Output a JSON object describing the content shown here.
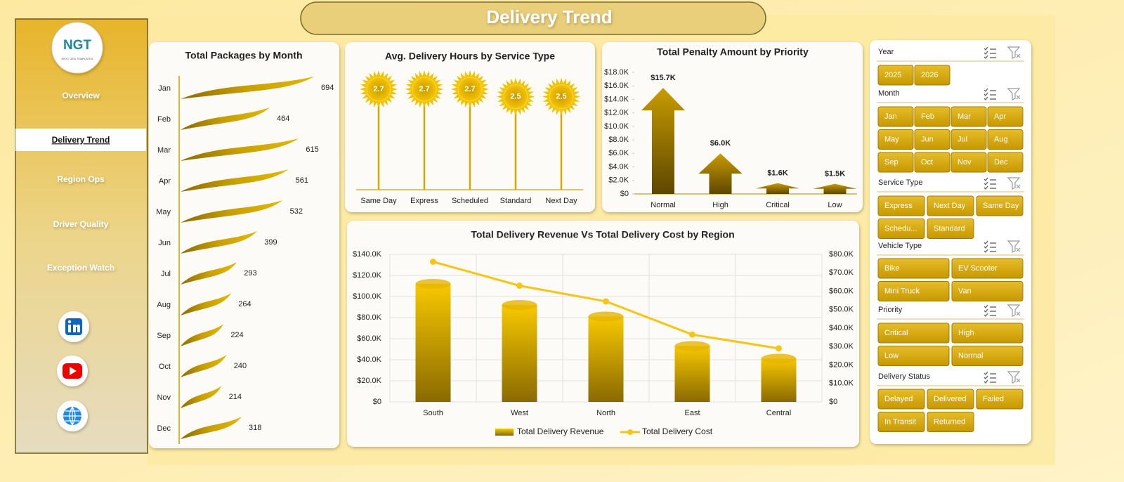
{
  "header": {
    "title": "Delivery Trend"
  },
  "logo": {
    "name": "NGT",
    "tagline": "NEXT GEN TEMPLATES"
  },
  "nav": {
    "items": [
      "Overview",
      "Delivery Trend",
      "Region Ops",
      "Driver Quality",
      "Exception Watch"
    ],
    "active": 1
  },
  "chart_data": [
    {
      "type": "bar",
      "title": "Total Packages by Month",
      "categories": [
        "Jan",
        "Feb",
        "Mar",
        "Apr",
        "May",
        "Jun",
        "Jul",
        "Aug",
        "Sep",
        "Oct",
        "Nov",
        "Dec"
      ],
      "values": [
        694,
        464,
        615,
        561,
        532,
        399,
        293,
        264,
        224,
        240,
        214,
        318
      ],
      "color": "#c9a000"
    },
    {
      "type": "lollipop",
      "title": "Avg. Delivery Hours by Service Type",
      "categories": [
        "Same Day",
        "Express",
        "Scheduled",
        "Standard",
        "Next Day"
      ],
      "values": [
        2.7,
        2.7,
        2.7,
        2.5,
        2.5
      ],
      "color": "#f2c200"
    },
    {
      "type": "column",
      "title": "Total Penalty Amount by Priority",
      "categories": [
        "Normal",
        "High",
        "Critical",
        "Low"
      ],
      "values": [
        15700,
        6000,
        1600,
        1500
      ],
      "value_labels": [
        "$15.7K",
        "$6.0K",
        "$1.6K",
        "$1.5K"
      ],
      "color": "#b08600",
      "ylim": [
        0,
        18000
      ],
      "yticks": [
        {
          "value": 0,
          "label": "$0"
        },
        {
          "value": 2000,
          "label": "$2.0K"
        },
        {
          "value": 4000,
          "label": "$4.0K"
        },
        {
          "value": 6000,
          "label": "$6.0K"
        },
        {
          "value": 8000,
          "label": "$8.0K"
        },
        {
          "value": 10000,
          "label": "$10.0K"
        },
        {
          "value": 12000,
          "label": "$12.0K"
        },
        {
          "value": 14000,
          "label": "$14.0K"
        },
        {
          "value": 16000,
          "label": "$16.0K"
        },
        {
          "value": 18000,
          "label": "$18.0K"
        }
      ]
    },
    {
      "type": "combo",
      "title": "Total Delivery Revenue Vs Total Delivery Cost by Region",
      "categories": [
        "South",
        "West",
        "North",
        "East",
        "Central"
      ],
      "series": [
        {
          "name": "Total Delivery Revenue",
          "color": "#e6b400",
          "kind": "bar",
          "values": [
            112000,
            92000,
            81000,
            53000,
            41000
          ]
        },
        {
          "name": "Total Delivery Cost",
          "color": "#f5c518",
          "kind": "line",
          "axis": "y2",
          "values": [
            76000,
            63000,
            54500,
            36500,
            29000
          ]
        }
      ],
      "ylim": [
        0,
        140000
      ],
      "yticks": [
        {
          "value": 0,
          "label": "$0"
        },
        {
          "value": 20000,
          "label": "$20.0K"
        },
        {
          "value": 40000,
          "label": "$40.0K"
        },
        {
          "value": 60000,
          "label": "$60.0K"
        },
        {
          "value": 80000,
          "label": "$80.0K"
        },
        {
          "value": 100000,
          "label": "$100.0K"
        },
        {
          "value": 120000,
          "label": "$120.0K"
        },
        {
          "value": 140000,
          "label": "$140.0K"
        }
      ],
      "y2lim": [
        0,
        80000
      ],
      "y2ticks": [
        {
          "value": 0,
          "label": "$0"
        },
        {
          "value": 10000,
          "label": "$10.0K"
        },
        {
          "value": 20000,
          "label": "$20.0K"
        },
        {
          "value": 30000,
          "label": "$30.0K"
        },
        {
          "value": 40000,
          "label": "$40.0K"
        },
        {
          "value": 50000,
          "label": "$50.0K"
        },
        {
          "value": 60000,
          "label": "$60.0K"
        },
        {
          "value": 70000,
          "label": "$70.0K"
        },
        {
          "value": 80000,
          "label": "$80.0K"
        }
      ],
      "grid": true,
      "legend": "bottom"
    }
  ],
  "slicers": [
    {
      "title": "Year",
      "items": [
        "2025",
        "2026"
      ]
    },
    {
      "title": "Month",
      "items": [
        "Jan",
        "Feb",
        "Mar",
        "Apr",
        "May",
        "Jun",
        "Jul",
        "Aug",
        "Sep",
        "Oct",
        "Nov",
        "Dec"
      ]
    },
    {
      "title": "Service Type",
      "items": [
        "Express",
        "Next Day",
        "Same Day",
        "Schedu...",
        "Standard"
      ]
    },
    {
      "title": "Vehicle Type",
      "items": [
        "Bike",
        "EV Scooter",
        "Mini Truck",
        "Van"
      ]
    },
    {
      "title": "Priority",
      "items": [
        "Critical",
        "High",
        "Low",
        "Normal"
      ]
    },
    {
      "title": "Delivery Status",
      "items": [
        "Delayed",
        "Delivered",
        "Failed",
        "In Transit",
        "Returned"
      ]
    }
  ]
}
